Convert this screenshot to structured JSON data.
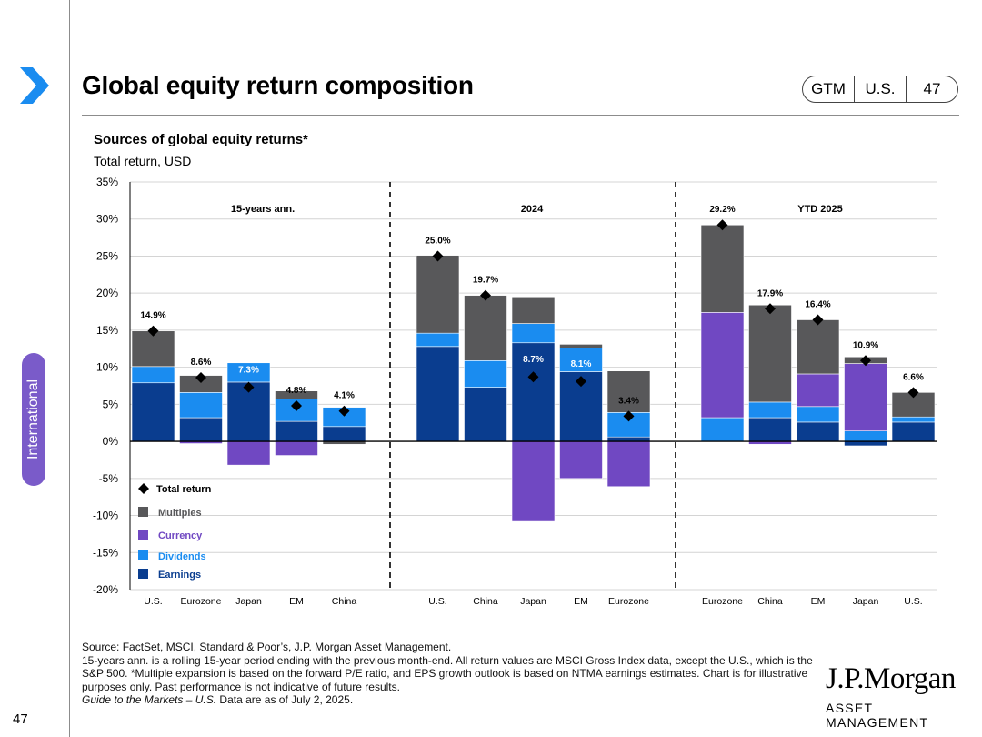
{
  "header": {
    "title": "Global equity return composition",
    "badge": [
      "GTM",
      "U.S.",
      "47"
    ]
  },
  "sidebar": {
    "section": "International",
    "page_number": "47"
  },
  "colors": {
    "earnings": "#0a3d8f",
    "dividends": "#1a8cf0",
    "currency": "#7048c2",
    "multiples": "#58585a",
    "accent": "#7a5bc9"
  },
  "chart_data": {
    "type": "bar",
    "stacked": true,
    "title": "Sources of global equity returns*",
    "ylabel": "Total return, USD",
    "ylim": [
      -20,
      35
    ],
    "yticks": [
      "35%",
      "30%",
      "25%",
      "20%",
      "15%",
      "10%",
      "5%",
      "0%",
      "-5%",
      "-10%",
      "-15%",
      "-20%"
    ],
    "ytick_values": [
      35,
      30,
      25,
      20,
      15,
      10,
      5,
      0,
      -5,
      -10,
      -15,
      -20
    ],
    "legend": [
      "Total return",
      "Multiples",
      "Currency",
      "Dividends",
      "Earnings"
    ],
    "groups": [
      {
        "label": "15-years ann.",
        "bars": [
          {
            "category": "U.S.",
            "earnings": 7.9,
            "dividends": 2.2,
            "currency": 0.0,
            "multiples": 4.8,
            "total": 14.9,
            "total_label": "14.9%"
          },
          {
            "category": "Eurozone",
            "earnings": 3.2,
            "dividends": 3.4,
            "currency": -0.3,
            "multiples": 2.3,
            "total": 8.6,
            "total_label": "8.6%"
          },
          {
            "category": "Japan",
            "earnings": 8.0,
            "dividends": 2.6,
            "currency": -3.2,
            "multiples": 0.0,
            "total": 7.3,
            "total_label": "7.3%"
          },
          {
            "category": "EM",
            "earnings": 2.7,
            "dividends": 3.0,
            "currency": -1.9,
            "multiples": 1.1,
            "total": 4.8,
            "total_label": "4.8%"
          },
          {
            "category": "China",
            "earnings": 2.0,
            "dividends": 2.6,
            "currency": 0.0,
            "multiples": -0.4,
            "total": 4.1,
            "total_label": "4.1%"
          }
        ]
      },
      {
        "label": "2024",
        "bars": [
          {
            "category": "U.S.",
            "earnings": 12.8,
            "dividends": 1.8,
            "currency": 0.0,
            "multiples": 10.5,
            "total": 25.0,
            "total_label": "25.0%"
          },
          {
            "category": "China",
            "earnings": 7.3,
            "dividends": 3.6,
            "currency": 0.0,
            "multiples": 8.8,
            "total": 19.7,
            "total_label": "19.7%"
          },
          {
            "category": "Japan",
            "earnings": 13.3,
            "dividends": 2.6,
            "currency": -10.8,
            "multiples": 3.6,
            "total": 8.7,
            "total_label": "8.7%"
          },
          {
            "category": "EM",
            "earnings": 9.4,
            "dividends": 3.2,
            "currency": -5.0,
            "multiples": 0.5,
            "total": 8.1,
            "total_label": "8.1%"
          },
          {
            "category": "Eurozone",
            "earnings": 0.6,
            "dividends": 3.3,
            "currency": -6.1,
            "multiples": 5.6,
            "total": 3.4,
            "total_label": "3.4%"
          }
        ]
      },
      {
        "label": "YTD 2025",
        "bars": [
          {
            "category": "Eurozone",
            "earnings": 0.0,
            "dividends": 3.2,
            "currency": 14.2,
            "multiples": 11.8,
            "total": 29.2,
            "total_label": "29.2%"
          },
          {
            "category": "China",
            "earnings": 3.2,
            "dividends": 2.1,
            "currency": -0.4,
            "multiples": 13.1,
            "total": 17.9,
            "total_label": "17.9%"
          },
          {
            "category": "EM",
            "earnings": 2.6,
            "dividends": 2.1,
            "currency": 4.4,
            "multiples": 7.3,
            "total": 16.4,
            "total_label": "16.4%"
          },
          {
            "category": "Japan",
            "earnings": -0.6,
            "dividends": 1.4,
            "currency": 9.1,
            "multiples": 0.9,
            "total": 10.9,
            "total_label": "10.9%"
          },
          {
            "category": "U.S.",
            "earnings": 2.6,
            "dividends": 0.7,
            "currency": 0.0,
            "multiples": 3.3,
            "total": 6.6,
            "total_label": "6.6%"
          }
        ]
      }
    ]
  },
  "footnote": {
    "source": "Source: FactSet, MSCI, Standard & Poor’s, J.P. Morgan Asset Management.",
    "body": "15-years ann. is a rolling 15-year period ending with the previous month-end. All return values are MSCI Gross Index data, except the U.S., which is the S&P 500. *Multiple expansion is based on the forward P/E ratio, and EPS growth outlook is based on NTMA earnings estimates. Chart is for illustrative purposes only. Past performance is not indicative of future results.",
    "guide": "Guide to the Markets – U.S.",
    "date_note": " Data are as of July 2, 2025."
  },
  "logo": {
    "name": "J.P.Morgan",
    "sub": "ASSET MANAGEMENT"
  }
}
